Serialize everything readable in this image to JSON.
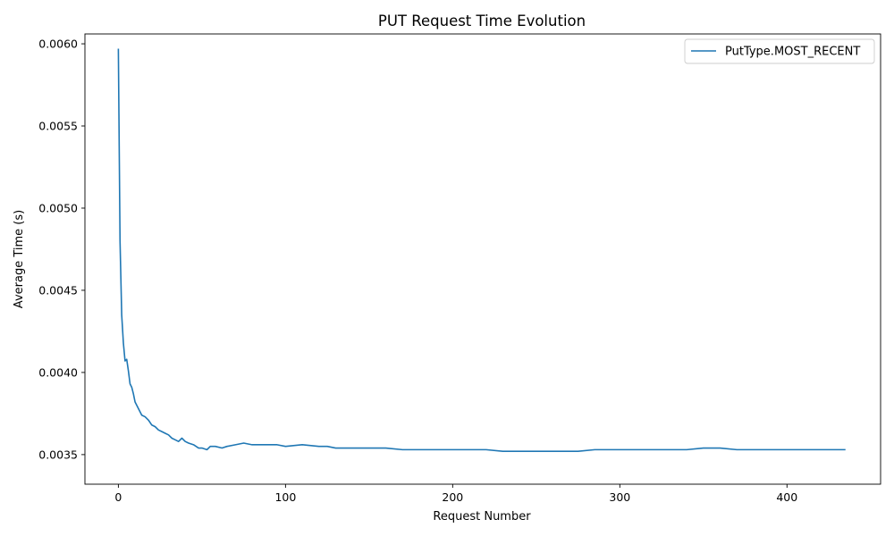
{
  "chart_data": {
    "type": "line",
    "title": "PUT Request Time Evolution",
    "xlabel": "Request Number",
    "ylabel": "Average Time (s)",
    "xlim": [
      -20,
      456
    ],
    "ylim": [
      0.00332,
      0.00606
    ],
    "xticks": [
      0,
      100,
      200,
      300,
      400
    ],
    "xtick_labels": [
      "0",
      "100",
      "200",
      "300",
      "400"
    ],
    "yticks": [
      0.0035,
      0.004,
      0.0045,
      0.005,
      0.0055,
      0.006
    ],
    "ytick_labels": [
      "0.0035",
      "0.0040",
      "0.0045",
      "0.0050",
      "0.0055",
      "0.0060"
    ],
    "grid": false,
    "legend_position": "top-right",
    "series": [
      {
        "name": "PutType.MOST_RECENT",
        "color": "#1f77b4",
        "x": [
          0,
          1,
          2,
          3,
          4,
          5,
          6,
          7,
          8,
          9,
          10,
          12,
          14,
          16,
          18,
          20,
          22,
          24,
          26,
          28,
          30,
          32,
          34,
          36,
          38,
          40,
          42,
          45,
          48,
          50,
          53,
          55,
          58,
          62,
          65,
          70,
          75,
          80,
          85,
          90,
          95,
          100,
          110,
          120,
          125,
          130,
          140,
          150,
          160,
          170,
          180,
          190,
          200,
          210,
          220,
          230,
          240,
          250,
          260,
          268,
          275,
          285,
          290,
          300,
          310,
          320,
          330,
          340,
          350,
          355,
          360,
          370,
          380,
          390,
          400,
          410,
          420,
          435
        ],
        "y": [
          0.00597,
          0.0048,
          0.00435,
          0.00418,
          0.00407,
          0.00408,
          0.00401,
          0.00393,
          0.00391,
          0.00387,
          0.00382,
          0.00378,
          0.00374,
          0.00373,
          0.00371,
          0.00368,
          0.00367,
          0.00365,
          0.00364,
          0.00363,
          0.00362,
          0.0036,
          0.00359,
          0.00358,
          0.0036,
          0.00358,
          0.00357,
          0.00356,
          0.00354,
          0.00354,
          0.00353,
          0.00355,
          0.00355,
          0.00354,
          0.00355,
          0.00356,
          0.00357,
          0.00356,
          0.00356,
          0.00356,
          0.00356,
          0.00355,
          0.00356,
          0.00355,
          0.00355,
          0.00354,
          0.00354,
          0.00354,
          0.00354,
          0.00353,
          0.00353,
          0.00353,
          0.00353,
          0.00353,
          0.00353,
          0.00352,
          0.00352,
          0.00352,
          0.00352,
          0.00352,
          0.00352,
          0.00353,
          0.00353,
          0.00353,
          0.00353,
          0.00353,
          0.00353,
          0.00353,
          0.00354,
          0.00354,
          0.00354,
          0.00353,
          0.00353,
          0.00353,
          0.00353,
          0.00353,
          0.00353,
          0.00353
        ]
      }
    ]
  }
}
